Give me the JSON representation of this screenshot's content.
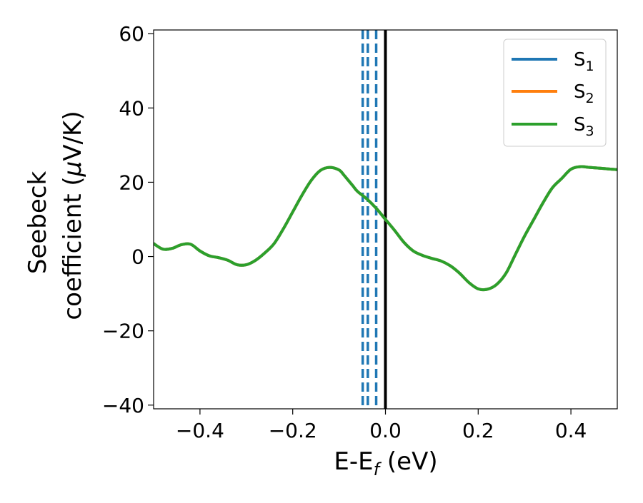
{
  "chart_data": {
    "type": "line",
    "xlabel": {
      "main": "E-E",
      "sub": "f",
      "suffix": " (eV)"
    },
    "ylabel": {
      "line1": "Seebeck",
      "line2_prefix": "coefficient  (",
      "mu": "μ",
      "line2_suffix": "V/K)"
    },
    "xlim": [
      -0.5,
      0.5
    ],
    "ylim": [
      -41,
      61
    ],
    "xticks": [
      -0.4,
      -0.2,
      0.0,
      0.2,
      0.4
    ],
    "xtick_labels": [
      "−0.4",
      "−0.2",
      "0.0",
      "0.2",
      "0.4"
    ],
    "yticks": [
      -40,
      -20,
      0,
      20,
      40,
      60
    ],
    "ytick_labels": [
      "−40",
      "−20",
      "0",
      "20",
      "40",
      "60"
    ],
    "grid": false,
    "legend_position": "top-right",
    "x": [
      -0.5,
      -0.48,
      -0.46,
      -0.44,
      -0.42,
      -0.4,
      -0.38,
      -0.36,
      -0.34,
      -0.32,
      -0.3,
      -0.28,
      -0.26,
      -0.24,
      -0.22,
      -0.2,
      -0.18,
      -0.16,
      -0.14,
      -0.12,
      -0.1,
      -0.09,
      -0.08,
      -0.07,
      -0.06,
      -0.04,
      -0.02,
      0.0,
      0.02,
      0.04,
      0.06,
      0.08,
      0.1,
      0.12,
      0.14,
      0.16,
      0.18,
      0.2,
      0.22,
      0.24,
      0.26,
      0.28,
      0.3,
      0.32,
      0.34,
      0.36,
      0.38,
      0.4,
      0.42,
      0.44,
      0.46,
      0.48,
      0.5
    ],
    "series": [
      {
        "name": {
          "base": "S",
          "sub": "1"
        },
        "color": "#1f77b4",
        "y": [
          3.5,
          2.0,
          2.2,
          3.2,
          3.3,
          1.5,
          0.2,
          -0.3,
          -1.0,
          -2.2,
          -2.2,
          -1.0,
          1.0,
          3.5,
          7.5,
          12.0,
          16.5,
          20.5,
          23.2,
          24.0,
          23.3,
          22.0,
          20.5,
          19.0,
          17.5,
          15.5,
          13.0,
          10.0,
          7.0,
          3.8,
          1.5,
          0.3,
          -0.5,
          -1.2,
          -2.5,
          -4.5,
          -7.0,
          -8.7,
          -8.8,
          -7.5,
          -4.5,
          0.5,
          5.5,
          10.0,
          14.5,
          18.5,
          21.0,
          23.5,
          24.2,
          24.0,
          23.8,
          23.6,
          23.4
        ]
      },
      {
        "name": {
          "base": "S",
          "sub": "2"
        },
        "color": "#ff7f0e",
        "y": [
          3.5,
          2.0,
          2.2,
          3.2,
          3.3,
          1.5,
          0.2,
          -0.3,
          -1.0,
          -2.2,
          -2.2,
          -1.0,
          1.0,
          3.5,
          7.5,
          12.0,
          16.5,
          20.5,
          23.2,
          24.0,
          23.3,
          22.0,
          20.5,
          19.0,
          17.5,
          15.5,
          13.0,
          10.0,
          7.0,
          3.8,
          1.5,
          0.3,
          -0.5,
          -1.2,
          -2.5,
          -4.5,
          -7.0,
          -8.7,
          -8.8,
          -7.5,
          -4.5,
          0.5,
          5.5,
          10.0,
          14.5,
          18.5,
          21.0,
          23.5,
          24.2,
          24.0,
          23.8,
          23.6,
          23.4
        ]
      },
      {
        "name": {
          "base": "S",
          "sub": "3"
        },
        "color": "#2ca02c",
        "y": [
          3.5,
          2.0,
          2.2,
          3.2,
          3.3,
          1.5,
          0.2,
          -0.3,
          -1.0,
          -2.2,
          -2.2,
          -1.0,
          1.0,
          3.5,
          7.5,
          12.0,
          16.5,
          20.5,
          23.2,
          24.0,
          23.3,
          22.0,
          20.5,
          19.0,
          17.5,
          15.5,
          13.0,
          10.0,
          7.0,
          3.8,
          1.5,
          0.3,
          -0.5,
          -1.2,
          -2.5,
          -4.5,
          -7.0,
          -8.7,
          -8.8,
          -7.5,
          -4.5,
          0.5,
          5.5,
          10.0,
          14.5,
          18.5,
          21.0,
          23.5,
          24.2,
          24.0,
          23.8,
          23.6,
          23.4
        ]
      }
    ],
    "vlines": [
      {
        "x": -0.049,
        "color": "#1f77b4",
        "style": "dashed"
      },
      {
        "x": -0.038,
        "color": "#1f77b4",
        "style": "dashed"
      },
      {
        "x": -0.02,
        "color": "#1f77b4",
        "style": "dashed"
      },
      {
        "x": 0.0,
        "color": "#000000",
        "style": "solid"
      }
    ]
  }
}
